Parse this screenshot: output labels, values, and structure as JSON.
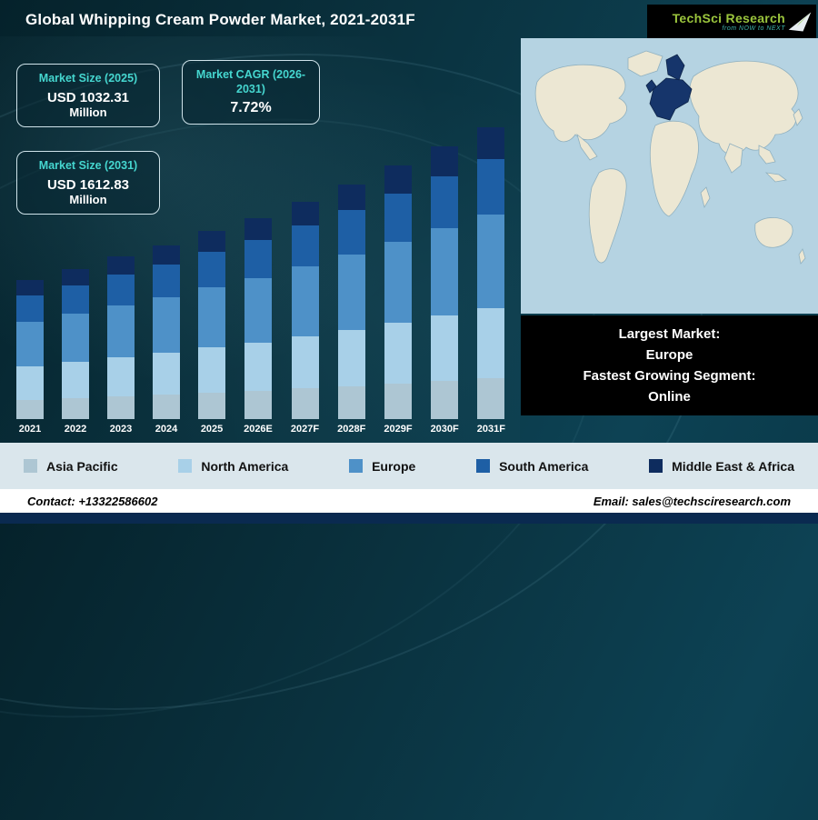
{
  "header": {
    "title": "Global Whipping Cream Powder Market, 2021-2031F",
    "logo": {
      "text": "TechSci Research",
      "tagline": "from NOW to NEXT"
    }
  },
  "cards": [
    {
      "title": "Market Size (2025)",
      "value": "USD 1032.31",
      "unit": "Million"
    },
    {
      "title": "Market CAGR (2026-2031)",
      "value": "7.72%",
      "unit": ""
    },
    {
      "title": "Market Size (2031)",
      "value": "USD 1612.83",
      "unit": "Million"
    }
  ],
  "chart_data": {
    "type": "bar",
    "stacked": true,
    "title": "Global Whipping Cream Powder Market, 2021-2031F",
    "units_implied": "USD Million",
    "categories": [
      "2021",
      "2022",
      "2023",
      "2024",
      "2025",
      "2026E",
      "2027F",
      "2028F",
      "2029F",
      "2030F",
      "2031F"
    ],
    "series": [
      {
        "name": "Asia Pacific",
        "color": "#adc6d3",
        "values": [
          107,
          116,
          125,
          134,
          144,
          156,
          168,
          181,
          194,
          210,
          226
        ]
      },
      {
        "name": "North America",
        "color": "#a8d0e8",
        "values": [
          184,
          198,
          214,
          230,
          248,
          267,
          287,
          310,
          333,
          359,
          387
        ]
      },
      {
        "name": "Europe",
        "color": "#4e91c8",
        "values": [
          245,
          264,
          285,
          307,
          330,
          356,
          383,
          413,
          444,
          479,
          516
        ]
      },
      {
        "name": "South America",
        "color": "#1e5fa5",
        "values": [
          146,
          157,
          169,
          182,
          196,
          211,
          227,
          245,
          264,
          284,
          306
        ]
      },
      {
        "name": "Middle East & Africa",
        "color": "#0e2c5e",
        "values": [
          84,
          91,
          98,
          105,
          114,
          122,
          132,
          142,
          153,
          165,
          177
        ]
      }
    ],
    "totals": [
      767,
      826,
      890,
      958,
      1032.31,
      1112,
      1197,
      1290,
      1389,
      1497,
      1612.83
    ],
    "ylim": [
      0,
      1700
    ],
    "legend_position": "bottom",
    "grid": false
  },
  "map_panel": {
    "highlight_region": "Europe",
    "ocean_color": "#b5d3e2",
    "land_color": "#ece7d3",
    "highlight_color": "#16356b"
  },
  "info_box": {
    "lines": [
      "Largest Market:",
      "Europe",
      "Fastest Growing Segment:",
      "Online"
    ]
  },
  "footer": {
    "contact": "Contact: +13322586602",
    "email": "Email: sales@techsciresearch.com"
  },
  "colors": {
    "accent_teal": "#45d6cf",
    "legend_band": "#dae6ec",
    "bottom_strip": "#0a2a50",
    "card_border": "#cfe3ea"
  }
}
